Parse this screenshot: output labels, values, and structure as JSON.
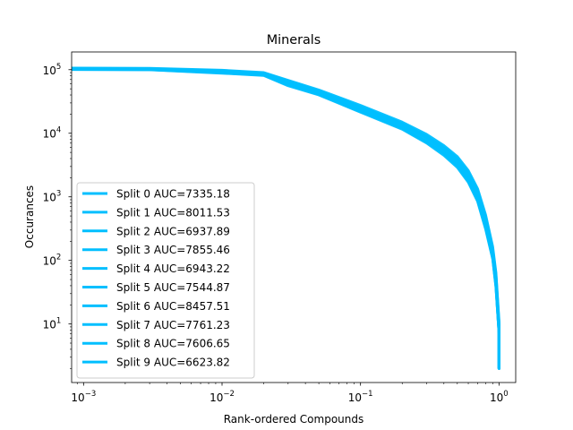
{
  "chart_data": {
    "type": "line",
    "title": "Minerals",
    "xlabel": "Rank-ordered Compounds",
    "ylabel": "Occurances",
    "xscale": "log",
    "yscale": "log",
    "xlim": [
      0.00082,
      1.32
    ],
    "ylim": [
      1.2,
      190000
    ],
    "xticks": [
      {
        "value": 0.001,
        "base": "10",
        "exp": "−3"
      },
      {
        "value": 0.01,
        "base": "10",
        "exp": "−2"
      },
      {
        "value": 0.1,
        "base": "10",
        "exp": "−1"
      },
      {
        "value": 1,
        "base": "10",
        "exp": "0"
      }
    ],
    "yticks": [
      {
        "value": 10,
        "base": "10",
        "exp": "1"
      },
      {
        "value": 100,
        "base": "10",
        "exp": "2"
      },
      {
        "value": 1000,
        "base": "10",
        "exp": "3"
      },
      {
        "value": 10000,
        "base": "10",
        "exp": "4"
      },
      {
        "value": 100000,
        "base": "10",
        "exp": "5"
      }
    ],
    "grid": false,
    "legend_position": "lower-left",
    "line_color": "#00bfff",
    "series": [
      {
        "name": "Split 0 AUC=7335.18",
        "x": [
          0.0008,
          0.003,
          0.01,
          0.02,
          0.03,
          0.05,
          0.1,
          0.2,
          0.3,
          0.4,
          0.5,
          0.6,
          0.7,
          0.8,
          0.9,
          0.95,
          1.0,
          1.0
        ],
        "y": [
          103000,
          102000,
          92000,
          85000,
          63000,
          44000,
          24000,
          13000,
          8000,
          5200,
          3400,
          2000,
          1000,
          380,
          120,
          45,
          8,
          2
        ]
      },
      {
        "name": "Split 1 AUC=8011.53",
        "x": [
          0.0008,
          0.003,
          0.01,
          0.02,
          0.03,
          0.05,
          0.1,
          0.2,
          0.3,
          0.4,
          0.5,
          0.6,
          0.7,
          0.8,
          0.9,
          0.95,
          1.0,
          1.0
        ],
        "y": [
          105000,
          104000,
          96000,
          88000,
          66000,
          46000,
          26000,
          14200,
          9000,
          6000,
          4000,
          2400,
          1250,
          480,
          150,
          60,
          10,
          2
        ]
      },
      {
        "name": "Split 2 AUC=6937.89",
        "x": [
          0.0008,
          0.003,
          0.01,
          0.02,
          0.03,
          0.05,
          0.1,
          0.2,
          0.3,
          0.4,
          0.5,
          0.6,
          0.7,
          0.8,
          0.9,
          0.95,
          1.0,
          1.0
        ],
        "y": [
          101000,
          100000,
          89000,
          82000,
          58000,
          41000,
          22000,
          12000,
          7300,
          4800,
          3100,
          1800,
          900,
          330,
          110,
          40,
          7,
          2
        ]
      },
      {
        "name": "Split 3 AUC=7855.46",
        "x": [
          0.0008,
          0.003,
          0.01,
          0.02,
          0.03,
          0.05,
          0.1,
          0.2,
          0.3,
          0.4,
          0.5,
          0.6,
          0.7,
          0.8,
          0.9,
          0.95,
          1.0,
          1.0
        ],
        "y": [
          104000,
          103000,
          95000,
          87000,
          65000,
          45500,
          25500,
          14000,
          8800,
          5800,
          3800,
          2300,
          1200,
          450,
          140,
          55,
          9,
          2
        ]
      },
      {
        "name": "Split 4 AUC=6943.22",
        "x": [
          0.0008,
          0.003,
          0.01,
          0.02,
          0.03,
          0.05,
          0.1,
          0.2,
          0.3,
          0.4,
          0.5,
          0.6,
          0.7,
          0.8,
          0.9,
          0.95,
          1.0,
          1.0
        ],
        "y": [
          101500,
          100500,
          89500,
          82500,
          58500,
          41500,
          22200,
          12100,
          7400,
          4850,
          3150,
          1820,
          910,
          335,
          112,
          41,
          7,
          2
        ]
      },
      {
        "name": "Split 5 AUC=7544.87",
        "x": [
          0.0008,
          0.003,
          0.01,
          0.02,
          0.03,
          0.05,
          0.1,
          0.2,
          0.3,
          0.4,
          0.5,
          0.6,
          0.7,
          0.8,
          0.9,
          0.95,
          1.0,
          1.0
        ],
        "y": [
          103500,
          102500,
          93000,
          86000,
          64000,
          44500,
          24500,
          13500,
          8400,
          5500,
          3600,
          2150,
          1100,
          420,
          130,
          50,
          8,
          2
        ]
      },
      {
        "name": "Split 6 AUC=8457.51",
        "x": [
          0.0008,
          0.003,
          0.01,
          0.02,
          0.03,
          0.05,
          0.1,
          0.2,
          0.3,
          0.4,
          0.5,
          0.6,
          0.7,
          0.8,
          0.9,
          0.95,
          1.0,
          1.0
        ],
        "y": [
          106000,
          105000,
          98000,
          90000,
          68000,
          48000,
          27500,
          15000,
          9600,
          6400,
          4300,
          2600,
          1350,
          520,
          165,
          65,
          11,
          2
        ]
      },
      {
        "name": "Split 7 AUC=7761.23",
        "x": [
          0.0008,
          0.003,
          0.01,
          0.02,
          0.03,
          0.05,
          0.1,
          0.2,
          0.3,
          0.4,
          0.5,
          0.6,
          0.7,
          0.8,
          0.9,
          0.95,
          1.0,
          1.0
        ],
        "y": [
          104000,
          103000,
          94500,
          87000,
          65000,
          45000,
          25200,
          13800,
          8700,
          5700,
          3750,
          2250,
          1180,
          440,
          138,
          53,
          9,
          2
        ]
      },
      {
        "name": "Split 8 AUC=7606.65",
        "x": [
          0.0008,
          0.003,
          0.01,
          0.02,
          0.03,
          0.05,
          0.1,
          0.2,
          0.3,
          0.4,
          0.5,
          0.6,
          0.7,
          0.8,
          0.9,
          0.95,
          1.0,
          1.0
        ],
        "y": [
          103800,
          102800,
          93500,
          86500,
          64500,
          44800,
          24800,
          13600,
          8500,
          5600,
          3650,
          2180,
          1120,
          425,
          132,
          51,
          8,
          2
        ]
      },
      {
        "name": "Split 9 AUC=6623.82",
        "x": [
          0.0008,
          0.003,
          0.01,
          0.02,
          0.03,
          0.05,
          0.1,
          0.2,
          0.3,
          0.4,
          0.5,
          0.6,
          0.7,
          0.8,
          0.9,
          0.95,
          1.0,
          1.0
        ],
        "y": [
          100500,
          99500,
          88000,
          81000,
          56000,
          40000,
          21500,
          11600,
          7000,
          4500,
          2900,
          1700,
          850,
          310,
          105,
          38,
          7,
          2
        ]
      }
    ]
  }
}
